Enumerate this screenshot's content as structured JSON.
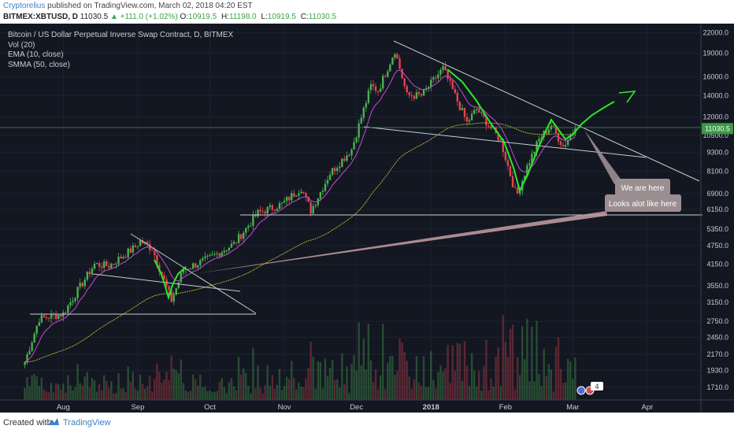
{
  "header": {
    "author": "Cryptorelius",
    "published_text": " published on TradingView.com, March 02, 2018 04:20 EST",
    "symbol": "BITMEX:XBTUSD, D",
    "price": "11030.5",
    "change": "▲ +111.0 (+1.02%)",
    "o_label": "O:",
    "o_value": "10919.5",
    "h_label": "H:",
    "h_value": "11198.0",
    "l_label": "L:",
    "l_value": "10919.5",
    "c_label": "C:",
    "c_value": "11030.5"
  },
  "legend": {
    "title": "Bitcoin / US Dollar Perpetual Inverse Swap Contract, D, BITMEX",
    "vol": "Vol (20)",
    "ema": "EMA (10, close)",
    "smma": "SMMA (50, close)"
  },
  "annotations": {
    "we_are_here": "We are here",
    "looks_alike": "Looks alot like here"
  },
  "footer": {
    "made_with": "Created with",
    "brand": "TradingView"
  },
  "colors": {
    "background": "#131722",
    "up": "#4caf50",
    "down": "#e0464f",
    "ema": "#c04fd0",
    "smma": "#b7b532",
    "annotation": "#9b8e91",
    "drawing": "#2ee628"
  },
  "chart_data": {
    "type": "candlestick",
    "scale": "log",
    "x_labels": [
      "Aug",
      "Sep",
      "Oct",
      "Nov",
      "Dec",
      "2018",
      "Feb",
      "Mar",
      "Apr"
    ],
    "y_ticks": [
      1710,
      1930,
      2170,
      2450,
      2750,
      3150,
      3550,
      4150,
      4750,
      5350,
      6150,
      6900,
      8100,
      9300,
      10500,
      12000,
      14000,
      16000,
      19000,
      22000
    ],
    "y_tick_labels": [
      "1710.0",
      "1930.0",
      "2170.0",
      "2450.0",
      "2750.0",
      "3150.0",
      "3550.0",
      "4150.0",
      "4750.0",
      "5350.0",
      "6150.0",
      "6900.0",
      "8100.0",
      "9300.0",
      "10500.0",
      "12000.0",
      "14000.0",
      "16000.0",
      "19000.0",
      "22000.0"
    ],
    "y_range": [
      1560,
      23500
    ],
    "last_price": 11030.5,
    "last_price_label": "11030.5",
    "key_points": [
      {
        "date": "2017-07-16",
        "close": 2050
      },
      {
        "date": "2017-07-22",
        "close": 2800
      },
      {
        "date": "2017-08-01",
        "close": 2900
      },
      {
        "date": "2017-08-05",
        "close": 3250
      },
      {
        "date": "2017-08-14",
        "close": 4150
      },
      {
        "date": "2017-08-20",
        "close": 4100
      },
      {
        "date": "2017-08-31",
        "close": 4700
      },
      {
        "date": "2017-09-02",
        "close": 4900
      },
      {
        "date": "2017-09-07",
        "close": 4650
      },
      {
        "date": "2017-09-15",
        "close": 3200
      },
      {
        "date": "2017-09-20",
        "close": 4000
      },
      {
        "date": "2017-09-30",
        "close": 4300
      },
      {
        "date": "2017-10-11",
        "close": 4800
      },
      {
        "date": "2017-10-21",
        "close": 6000
      },
      {
        "date": "2017-10-31",
        "close": 6400
      },
      {
        "date": "2017-11-08",
        "close": 7200
      },
      {
        "date": "2017-11-12",
        "close": 6100
      },
      {
        "date": "2017-11-20",
        "close": 8000
      },
      {
        "date": "2017-11-29",
        "close": 9500
      },
      {
        "date": "2017-12-07",
        "close": 15000
      },
      {
        "date": "2017-12-10",
        "close": 14500
      },
      {
        "date": "2017-12-17",
        "close": 19400
      },
      {
        "date": "2017-12-22",
        "close": 14000
      },
      {
        "date": "2017-12-28",
        "close": 14000
      },
      {
        "date": "2018-01-06",
        "close": 17000
      },
      {
        "date": "2018-01-16",
        "close": 11500
      },
      {
        "date": "2018-01-20",
        "close": 12700
      },
      {
        "date": "2018-01-30",
        "close": 10100
      },
      {
        "date": "2018-02-05",
        "close": 7000
      },
      {
        "date": "2018-02-06",
        "close": 6900
      },
      {
        "date": "2018-02-10",
        "close": 8400
      },
      {
        "date": "2018-02-15",
        "close": 10200
      },
      {
        "date": "2018-02-20",
        "close": 11300
      },
      {
        "date": "2018-02-25",
        "close": 9700
      },
      {
        "date": "2018-03-02",
        "close": 11030
      }
    ]
  }
}
